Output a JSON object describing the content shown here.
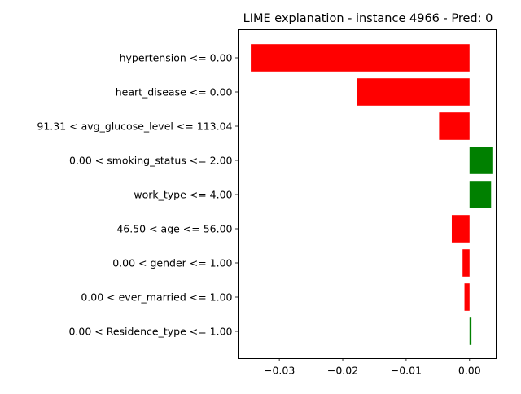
{
  "chart_data": {
    "type": "bar",
    "orientation": "horizontal",
    "title": "LIME explanation - instance 4966 - Pred: 0",
    "xlabel": "",
    "ylabel": "",
    "xlim": [
      -0.0365,
      0.0042
    ],
    "xticks": [
      -0.03,
      -0.02,
      -0.01,
      0.0
    ],
    "xtick_labels": [
      "−0.03",
      "−0.02",
      "−0.01",
      "0.00"
    ],
    "categories": [
      "hypertension <= 0.00",
      "heart_disease <= 0.00",
      "91.31 < avg_glucose_level <= 113.04",
      "0.00 < smoking_status <= 2.00",
      "work_type <= 4.00",
      "46.50 < age <= 56.00",
      "0.00 < gender <= 1.00",
      "0.00 < ever_married <= 1.00",
      "0.00 < Residence_type <= 1.00"
    ],
    "values": [
      -0.0345,
      -0.0177,
      -0.0048,
      0.0036,
      0.0034,
      -0.0028,
      -0.0011,
      -0.0008,
      0.0003
    ],
    "colors": {
      "positive": "#008000",
      "negative": "#ff0000"
    },
    "grid": false,
    "legend": "none"
  }
}
